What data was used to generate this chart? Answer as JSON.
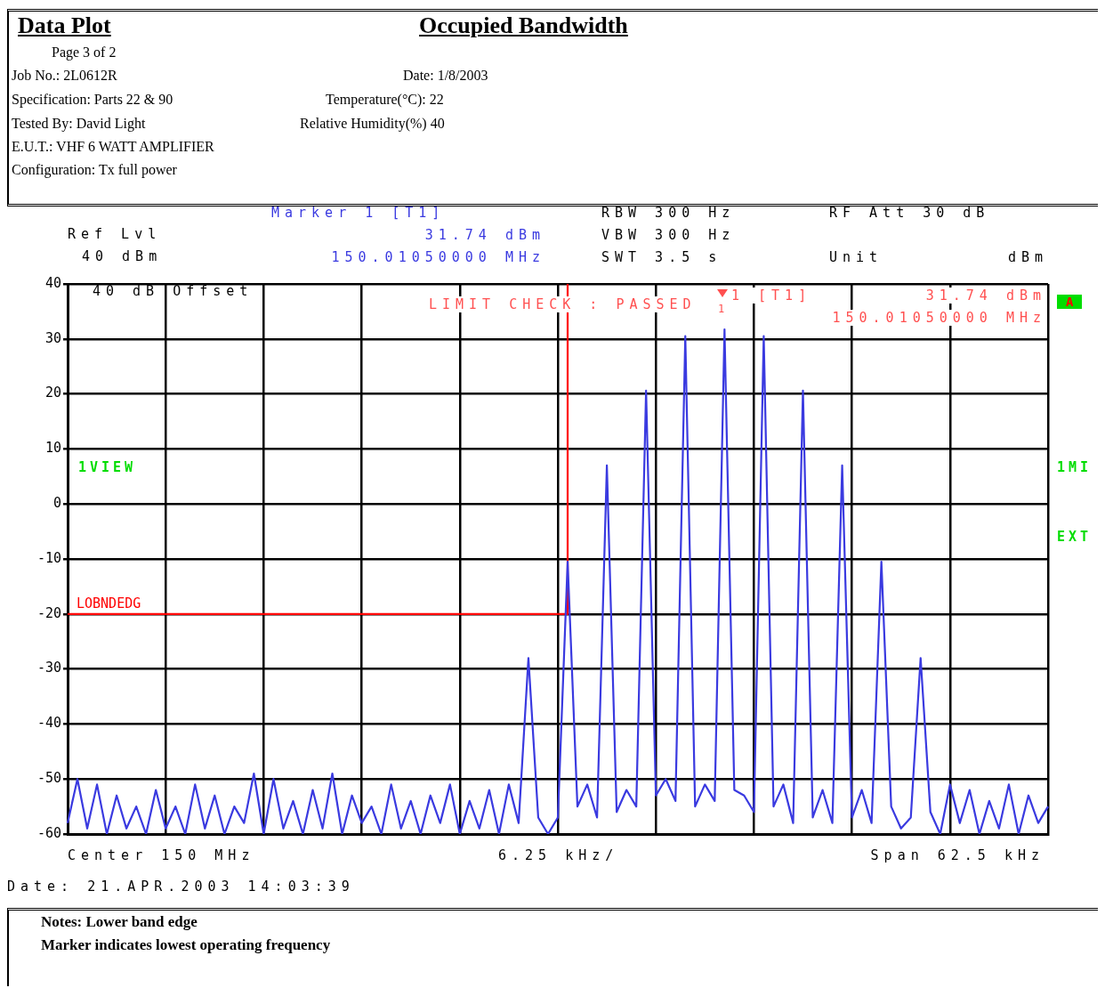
{
  "chart_data": {
    "type": "line",
    "title": "Occupied Bandwidth",
    "annotations": [
      "Data Plot",
      "Page 3 of 2",
      "Job No.: 2L0612R",
      "Date: 1/8/2003",
      "Specification: Parts 22 & 90",
      "Temperature(°C): 22",
      "Tested By: David Light",
      "Relative Humidity(%) 40",
      "E.U.T.: VHF 6 WATT AMPLIFIER",
      "Configuration: Tx full power",
      "Ref Lvl",
      "40 dBm",
      "Marker 1 [T1]",
      "31.74 dBm",
      "150.01050000 MHz",
      "RBW 300 Hz",
      "VBW 300 Hz",
      "SWT 3.5 s",
      "RF Att 30 dB",
      "Unit",
      "dBm",
      "40 dB Offset",
      "LIMIT CHECK : PASSED",
      "1 [T1]",
      "31.74 dBm",
      "150.01050000 MHz",
      "A",
      "1VIEW",
      "1MI",
      "EXT",
      "Center 150 MHz",
      "6.25 kHz/",
      "Span 62.5 kHz",
      "Date: 21.APR.2003 14:03:39",
      "Notes: Lower band edge",
      "Marker indicates lowest operating frequency",
      "1"
    ],
    "categories": [
      null,
      null,
      null,
      null,
      null,
      null,
      null,
      null,
      null,
      null,
      null,
      null,
      null,
      null,
      null,
      null,
      null,
      null,
      null,
      null,
      null,
      null,
      null,
      null,
      null,
      null,
      null,
      null,
      null,
      null,
      null,
      null,
      null,
      null,
      null,
      null,
      null,
      null,
      null,
      null,
      null,
      null,
      null,
      null,
      null,
      null,
      null,
      null,
      null,
      null,
      null,
      null,
      null,
      null,
      null,
      null,
      null,
      null,
      null,
      null,
      null,
      null,
      null,
      null,
      null,
      null,
      null,
      null,
      null,
      null,
      null,
      null,
      null,
      null,
      null,
      null,
      null,
      null,
      null,
      null,
      null,
      null,
      null,
      null,
      null,
      null,
      null,
      null,
      null,
      null,
      null,
      null,
      null,
      null,
      null,
      null,
      null,
      null,
      null,
      null,
      null
    ],
    "series": [
      {
        "color": "#3a3ae0",
        "values": [
          -58,
          -50,
          -59,
          -51,
          -60,
          -53,
          -59,
          -55,
          -60,
          -52,
          -59,
          -55,
          -60,
          -51,
          -59,
          -53,
          -60,
          -55,
          -58,
          -49,
          -60,
          -50,
          -59,
          -54,
          -60,
          -52,
          -59,
          -49,
          -60,
          -53,
          -58,
          -55,
          -60,
          -51,
          -59,
          -54,
          -60,
          -53,
          -58,
          -51,
          -60,
          -54,
          -59,
          -52,
          -60,
          -51,
          -58,
          -28,
          -57,
          -60,
          -57,
          -10.5,
          -55,
          -51,
          -57,
          7,
          -56,
          -52,
          -55,
          20.6,
          -53,
          -50,
          -54,
          30.5,
          -55,
          -51,
          -54,
          31.74,
          -52,
          -53,
          -56,
          30.5,
          -55,
          -51,
          -58,
          20.6,
          -57,
          -52,
          -58,
          7,
          -57,
          -52,
          -58,
          -10.5,
          -55,
          -59,
          -57,
          -28,
          -56,
          -60,
          -51,
          -58,
          -52,
          -60,
          -54,
          -59,
          -51,
          -60,
          -53,
          -58,
          -55
        ]
      },
      {
        "name": "LOBNDEDG",
        "type": "step",
        "color": "#ff0000",
        "values": [
          -20,
          -20,
          -20,
          -20,
          -20,
          -20,
          -20,
          -20,
          -20,
          -20,
          -20,
          -20,
          -20,
          -20,
          -20,
          -20,
          -20,
          -20,
          -20,
          -20,
          -20,
          -20,
          -20,
          -20,
          -20,
          -20,
          -20,
          -20,
          -20,
          -20,
          -20,
          -20,
          -20,
          -20,
          -20,
          -20,
          -20,
          -20,
          -20,
          -20,
          -20,
          -20,
          -20,
          -20,
          -20,
          -20,
          -20,
          -20,
          -20,
          -20,
          -20,
          40,
          null,
          null,
          null,
          null,
          null,
          null,
          null,
          null,
          null,
          null,
          null,
          null,
          null,
          null,
          null,
          null,
          null,
          null,
          null,
          null,
          null,
          null,
          null,
          null,
          null,
          null,
          null,
          null,
          null,
          null,
          null,
          null,
          null,
          null,
          null,
          null,
          null,
          null,
          null,
          null,
          null,
          null,
          null,
          null,
          null,
          null,
          null,
          null,
          null
        ]
      }
    ],
    "ylim": [
      -60,
      40
    ],
    "yticks": [
      -60,
      -50,
      -40,
      -30,
      -20,
      -10,
      0,
      10,
      20,
      30,
      40
    ],
    "tick_labels": "y",
    "grid": true,
    "marker": "none",
    "line_style": "solid"
  }
}
